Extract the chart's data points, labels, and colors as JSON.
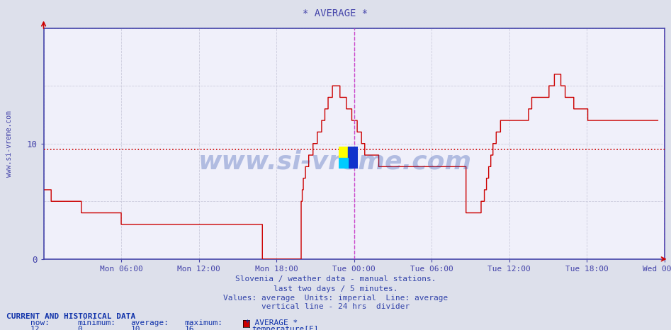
{
  "title": "* AVERAGE *",
  "bg_color": "#dde0eb",
  "plot_bg": "#f0f0fa",
  "line_color": "#cc0000",
  "axis_color": "#4444aa",
  "avg_line_value": 9.5,
  "vline_color": "#cc44cc",
  "ylim": [
    0,
    20
  ],
  "yticks": [
    0,
    10
  ],
  "ytick_labels": [
    "0",
    "10"
  ],
  "tick_pos": [
    72,
    144,
    216,
    288,
    360,
    432,
    504,
    576
  ],
  "tick_lbl": [
    "Mon 06:00",
    "Mon 12:00",
    "Mon 18:00",
    "Tue 00:00",
    "Tue 06:00",
    "Tue 12:00",
    "Tue 18:00",
    "Wed 00:00"
  ],
  "subtitle1": "Slovenia / weather data - manual stations.",
  "subtitle2": "last two days / 5 minutes.",
  "subtitle3": "Values: average  Units: imperial  Line: average",
  "subtitle4": "vertical line - 24 hrs  divider",
  "footer_title": "CURRENT AND HISTORICAL DATA",
  "footer_headers": [
    "now:",
    "minimum:",
    "average:",
    "maximum:",
    "* AVERAGE *"
  ],
  "footer_values": [
    "12",
    "0",
    "10",
    "16",
    "temperature[F]"
  ],
  "watermark": "www.si-vreme.com",
  "watermark_color": "#2244aa",
  "ylabel_text": "www.si-vreme.com",
  "temperature_data": [
    6,
    6,
    6,
    6,
    6,
    6,
    6,
    5,
    5,
    5,
    5,
    5,
    5,
    5,
    5,
    5,
    5,
    5,
    5,
    5,
    5,
    5,
    5,
    5,
    5,
    5,
    5,
    5,
    5,
    5,
    5,
    5,
    5,
    5,
    5,
    4,
    4,
    4,
    4,
    4,
    4,
    4,
    4,
    4,
    4,
    4,
    4,
    4,
    4,
    4,
    4,
    4,
    4,
    4,
    4,
    4,
    4,
    4,
    4,
    4,
    4,
    4,
    4,
    4,
    4,
    4,
    4,
    4,
    4,
    4,
    4,
    4,
    3,
    3,
    3,
    3,
    3,
    3,
    3,
    3,
    3,
    3,
    3,
    3,
    3,
    3,
    3,
    3,
    3,
    3,
    3,
    3,
    3,
    3,
    3,
    3,
    3,
    3,
    3,
    3,
    3,
    3,
    3,
    3,
    3,
    3,
    3,
    3,
    3,
    3,
    3,
    3,
    3,
    3,
    3,
    3,
    3,
    3,
    3,
    3,
    3,
    3,
    3,
    3,
    3,
    3,
    3,
    3,
    3,
    3,
    3,
    3,
    3,
    3,
    3,
    3,
    3,
    3,
    3,
    3,
    3,
    3,
    3,
    3,
    3,
    3,
    3,
    3,
    3,
    3,
    3,
    3,
    3,
    3,
    3,
    3,
    3,
    3,
    3,
    3,
    3,
    3,
    3,
    3,
    3,
    3,
    3,
    3,
    3,
    3,
    3,
    3,
    3,
    3,
    3,
    3,
    3,
    3,
    3,
    3,
    3,
    3,
    3,
    3,
    3,
    3,
    3,
    3,
    3,
    3,
    3,
    3,
    3,
    3,
    3,
    3,
    3,
    3,
    3,
    3,
    3,
    3,
    3,
    0,
    0,
    0,
    0,
    0,
    0,
    0,
    0,
    0,
    0,
    0,
    0,
    0,
    0,
    0,
    0,
    0,
    0,
    0,
    0,
    0,
    0,
    0,
    0,
    0,
    0,
    0,
    0,
    0,
    0,
    0,
    0,
    0,
    0,
    0,
    0,
    5,
    6,
    7,
    7,
    8,
    8,
    8,
    9,
    9,
    9,
    9,
    10,
    10,
    10,
    10,
    11,
    11,
    11,
    11,
    12,
    12,
    12,
    13,
    13,
    13,
    14,
    14,
    14,
    14,
    15,
    15,
    15,
    15,
    15,
    15,
    15,
    14,
    14,
    14,
    14,
    14,
    14,
    13,
    13,
    13,
    13,
    13,
    12,
    12,
    12,
    12,
    12,
    11,
    11,
    11,
    11,
    10,
    10,
    10,
    9,
    9,
    9,
    9,
    9,
    9,
    9,
    9,
    9,
    9,
    9,
    9,
    9,
    8,
    8,
    8,
    8,
    8,
    8,
    8,
    8,
    8,
    8,
    8,
    8,
    8,
    8,
    8,
    8,
    8,
    8,
    8,
    8,
    8,
    8,
    8,
    8,
    8,
    8,
    8,
    8,
    8,
    8,
    8,
    8,
    8,
    8,
    8,
    8,
    8,
    8,
    8,
    8,
    8,
    8,
    8,
    8,
    8,
    8,
    8,
    8,
    8,
    8,
    8,
    8,
    8,
    8,
    8,
    8,
    8,
    8,
    8,
    8,
    8,
    8,
    8,
    8,
    8,
    8,
    8,
    8,
    8,
    8,
    8,
    8,
    8,
    8,
    8,
    8,
    8,
    8,
    8,
    8,
    8,
    4,
    4,
    4,
    4,
    4,
    4,
    4,
    4,
    4,
    4,
    4,
    4,
    4,
    4,
    5,
    5,
    5,
    6,
    6,
    7,
    7,
    8,
    8,
    9,
    9,
    10,
    10,
    10,
    11,
    11,
    11,
    11,
    12,
    12,
    12,
    12,
    12,
    12,
    12,
    12,
    12,
    12,
    12,
    12,
    12,
    12,
    12,
    12,
    12,
    12,
    12,
    12,
    12,
    12,
    12,
    12,
    12,
    12,
    13,
    13,
    13,
    14,
    14,
    14,
    14,
    14,
    14,
    14,
    14,
    14,
    14,
    14,
    14,
    14,
    14,
    14,
    14,
    15,
    15,
    15,
    15,
    15,
    16,
    16,
    16,
    16,
    16,
    16,
    15,
    15,
    15,
    15,
    14,
    14,
    14,
    14,
    14,
    14,
    14,
    14,
    13,
    13,
    13,
    13,
    13,
    13,
    13,
    13,
    13,
    13,
    13,
    13,
    13,
    12,
    12,
    12,
    12,
    12,
    12,
    12,
    12,
    12,
    12,
    12,
    12,
    12,
    12,
    12,
    12,
    12,
    12,
    12,
    12,
    12,
    12,
    12,
    12,
    12,
    12,
    12,
    12,
    12,
    12,
    12,
    12,
    12,
    12,
    12,
    12,
    12,
    12,
    12,
    12,
    12,
    12,
    12,
    12,
    12,
    12,
    12,
    12,
    12,
    12,
    12,
    12,
    12,
    12,
    12,
    12,
    12,
    12,
    12,
    12,
    12,
    12,
    12,
    12,
    12,
    12
  ]
}
